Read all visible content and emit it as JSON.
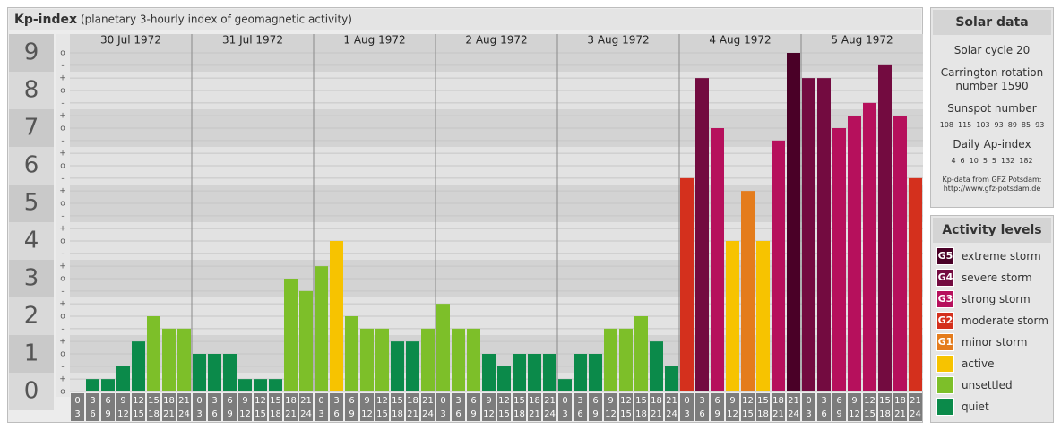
{
  "chart_data": {
    "type": "bar",
    "title": "Kp-index",
    "subtitle": "(planetary 3-hourly index of geomagnetic activity)",
    "ylim": [
      0,
      9.5
    ],
    "yticks": [
      0,
      1,
      2,
      3,
      4,
      5,
      6,
      7,
      8,
      9
    ],
    "yticks_minor": [
      {
        "value": 0,
        "label": "o"
      },
      {
        "value": 0.33,
        "label": "+"
      },
      {
        "value": 0.67,
        "label": "-"
      },
      {
        "value": 1,
        "label": "o"
      },
      {
        "value": 1.33,
        "label": "+"
      },
      {
        "value": 1.67,
        "label": "-"
      },
      {
        "value": 2,
        "label": "o"
      },
      {
        "value": 2.33,
        "label": "+"
      },
      {
        "value": 2.67,
        "label": "-"
      },
      {
        "value": 3,
        "label": "o"
      },
      {
        "value": 3.33,
        "label": "+"
      },
      {
        "value": 3.67,
        "label": "-"
      },
      {
        "value": 4,
        "label": "o"
      },
      {
        "value": 4.33,
        "label": "+"
      },
      {
        "value": 4.67,
        "label": "-"
      },
      {
        "value": 5,
        "label": "o"
      },
      {
        "value": 5.33,
        "label": "+"
      },
      {
        "value": 5.67,
        "label": "-"
      },
      {
        "value": 6,
        "label": "o"
      },
      {
        "value": 6.33,
        "label": "+"
      },
      {
        "value": 6.67,
        "label": "-"
      },
      {
        "value": 7,
        "label": "o"
      },
      {
        "value": 7.33,
        "label": "+"
      },
      {
        "value": 7.67,
        "label": "-"
      },
      {
        "value": 8,
        "label": "o"
      },
      {
        "value": 8.33,
        "label": "+"
      },
      {
        "value": 8.67,
        "label": "-"
      },
      {
        "value": 9,
        "label": "o"
      }
    ],
    "grid": true,
    "hours": [
      "0",
      "3",
      "6",
      "9",
      "12",
      "15",
      "18",
      "21",
      "24"
    ],
    "series": [
      {
        "name": "30 Jul 1972",
        "values": [
          0,
          0.33,
          0.33,
          0.67,
          1.33,
          2,
          1.67,
          1.67
        ],
        "colors": [
          "#0b8a4a",
          "#0b8a4a",
          "#0b8a4a",
          "#0b8a4a",
          "#0b8a4a",
          "#7dbf29",
          "#7dbf29",
          "#7dbf29"
        ]
      },
      {
        "name": "31 Jul 1972",
        "values": [
          1,
          1,
          1,
          0.33,
          0.33,
          0.33,
          3,
          2.67
        ],
        "colors": [
          "#0b8a4a",
          "#0b8a4a",
          "#0b8a4a",
          "#0b8a4a",
          "#0b8a4a",
          "#0b8a4a",
          "#7dbf29",
          "#7dbf29"
        ]
      },
      {
        "name": "1 Aug 1972",
        "values": [
          3.33,
          4,
          2,
          1.67,
          1.67,
          1.33,
          1.33,
          1.67
        ],
        "colors": [
          "#7dbf29",
          "#f7c300",
          "#7dbf29",
          "#7dbf29",
          "#7dbf29",
          "#0b8a4a",
          "#0b8a4a",
          "#7dbf29"
        ]
      },
      {
        "name": "2 Aug 1972",
        "values": [
          2.33,
          1.67,
          1.67,
          1,
          0.67,
          1,
          1,
          1
        ],
        "colors": [
          "#7dbf29",
          "#7dbf29",
          "#7dbf29",
          "#0b8a4a",
          "#0b8a4a",
          "#0b8a4a",
          "#0b8a4a",
          "#0b8a4a"
        ]
      },
      {
        "name": "3 Aug 1972",
        "values": [
          0.33,
          1,
          1,
          1.67,
          1.67,
          2,
          1.33,
          0.67
        ],
        "colors": [
          "#0b8a4a",
          "#0b8a4a",
          "#0b8a4a",
          "#7dbf29",
          "#7dbf29",
          "#7dbf29",
          "#0b8a4a",
          "#0b8a4a"
        ]
      },
      {
        "name": "4 Aug 1972",
        "values": [
          5.67,
          8.33,
          7,
          4,
          5.33,
          4,
          6.67,
          9
        ],
        "colors": [
          "#d4301d",
          "#730b40",
          "#b6105c",
          "#f7c300",
          "#e47c1c",
          "#f7c300",
          "#b6105c",
          "#4a0027"
        ]
      },
      {
        "name": "5 Aug 1972",
        "values": [
          8.33,
          8.33,
          7,
          7.33,
          7.67,
          8.67,
          7.33,
          5.67
        ],
        "colors": [
          "#730b40",
          "#730b40",
          "#b6105c",
          "#b6105c",
          "#b6105c",
          "#730b40",
          "#b6105c",
          "#d4301d"
        ]
      }
    ]
  },
  "solar_data": {
    "title": "Solar data",
    "cycle": "Solar cycle 20",
    "carrington": "Carrington rotation number 1590",
    "sunspot_label": "Sunspot number",
    "sunspot_numbers": [
      108,
      115,
      103,
      93,
      89,
      85,
      93
    ],
    "ap_label": "Daily Ap-index",
    "ap_index": [
      4,
      6,
      10,
      5,
      5,
      132,
      182
    ],
    "source": "Kp-data from GFZ Potsdam:",
    "source_url": "http://www.gfz-potsdam.de"
  },
  "activity_levels": {
    "title": "Activity levels",
    "levels": [
      {
        "badge": "G5",
        "name": "extreme storm",
        "color": "#4a0027"
      },
      {
        "badge": "G4",
        "name": "severe storm",
        "color": "#730b40"
      },
      {
        "badge": "G3",
        "name": "strong storm",
        "color": "#b6105c"
      },
      {
        "badge": "G2",
        "name": "moderate storm",
        "color": "#d4301d"
      },
      {
        "badge": "G1",
        "name": "minor storm",
        "color": "#e47c1c"
      },
      {
        "name": "active",
        "color": "#f7c300"
      },
      {
        "name": "unsettled",
        "color": "#7dbf29"
      },
      {
        "name": "quiet",
        "color": "#0b8a4a"
      }
    ]
  }
}
